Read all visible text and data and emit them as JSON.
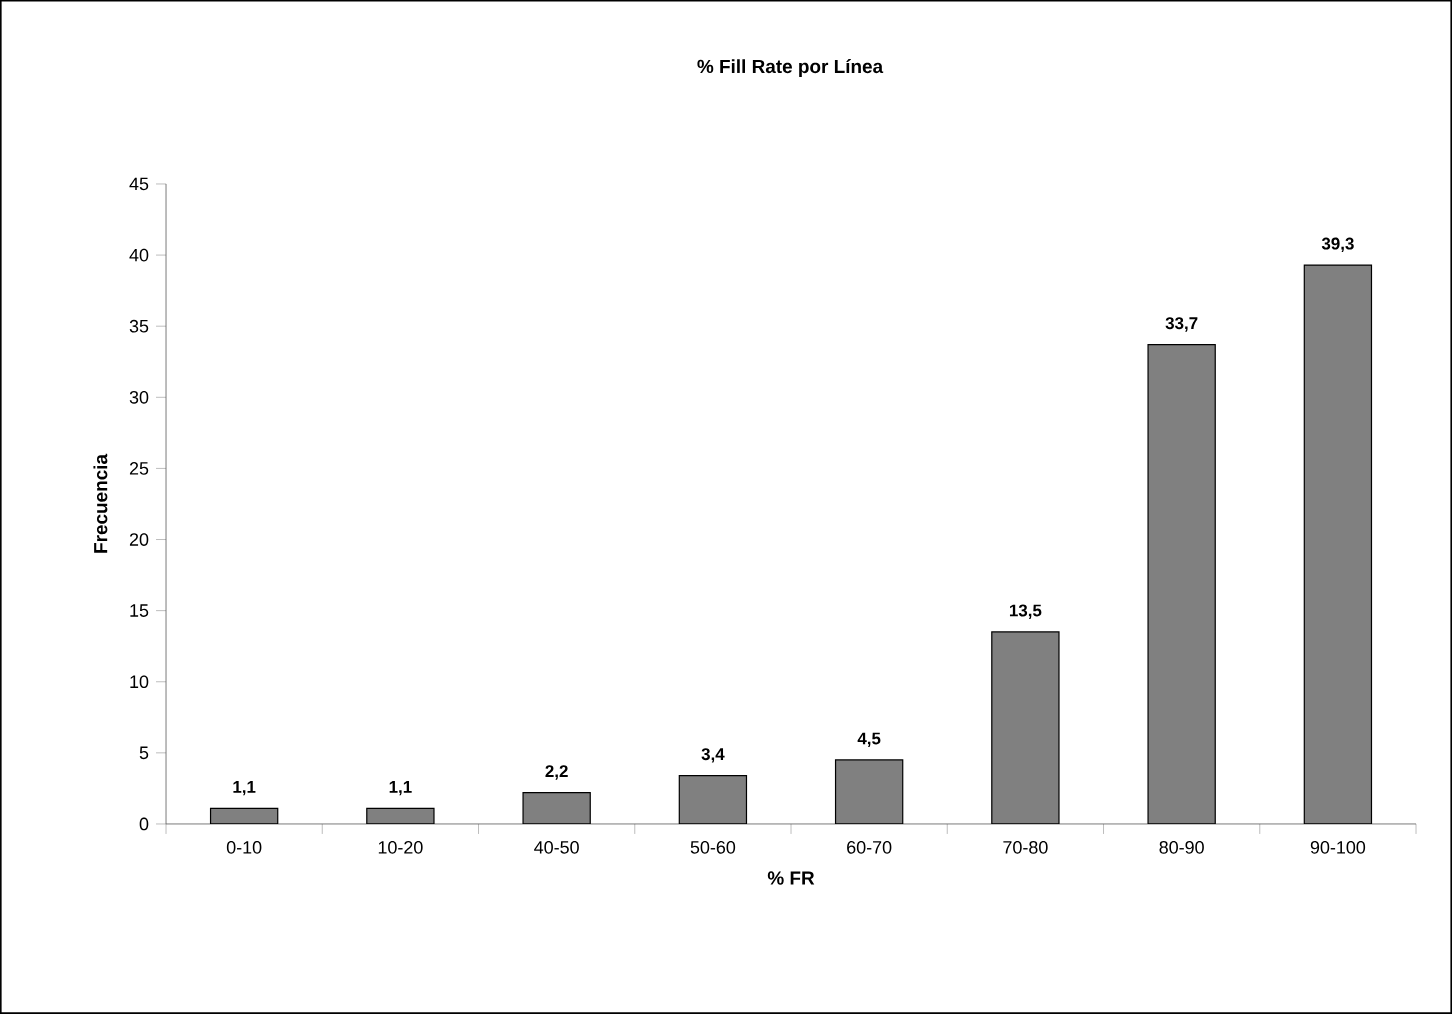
{
  "chart_data": {
    "type": "bar",
    "title": "% Fill Rate por Línea",
    "xlabel": "% FR",
    "ylabel": "Frecuencia",
    "categories": [
      "0-10",
      "10-20",
      "40-50",
      "50-60",
      "60-70",
      "70-80",
      "80-90",
      "90-100"
    ],
    "values": [
      1.1,
      1.1,
      2.2,
      3.4,
      4.5,
      13.5,
      33.7,
      39.3
    ],
    "value_labels": [
      "1,1",
      "1,1",
      "2,2",
      "3,4",
      "4,5",
      "13,5",
      "33,7",
      "39,3"
    ],
    "color": "#808080",
    "ylim": [
      0,
      45
    ],
    "yticks": [
      0,
      5,
      10,
      15,
      20,
      25,
      30,
      35,
      40,
      45
    ],
    "grid": false
  }
}
